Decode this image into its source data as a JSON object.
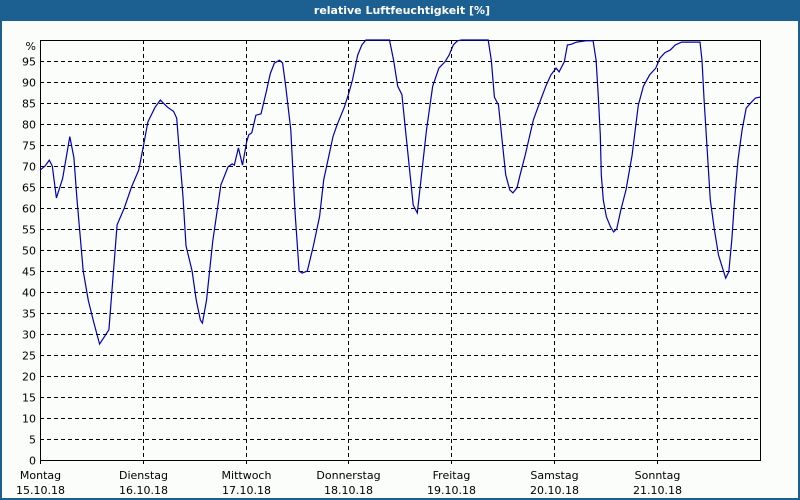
{
  "window": {
    "title": "relative Luftfeuchtigkeit [%]"
  },
  "colors": {
    "titlebar": "#1c5f91",
    "line": "#0000b4",
    "background": "#fbfdfb",
    "grid": "#000000"
  },
  "chart_data": {
    "type": "line",
    "title": "relative Luftfeuchtigkeit [%]",
    "xlabel": "",
    "ylabel": "%",
    "ylim": [
      0,
      100
    ],
    "grid": true,
    "y_ticks": [
      0,
      5,
      10,
      15,
      20,
      25,
      30,
      35,
      40,
      45,
      50,
      55,
      60,
      65,
      70,
      75,
      80,
      85,
      90,
      95
    ],
    "y_unit_label": "%",
    "x_ticks": [
      {
        "day": "Montag",
        "date": "15.10.18"
      },
      {
        "day": "Dienstag",
        "date": "16.10.18"
      },
      {
        "day": "Mittwoch",
        "date": "17.10.18"
      },
      {
        "day": "Donnerstag",
        "date": "18.10.18"
      },
      {
        "day": "Freitag",
        "date": "19.10.18"
      },
      {
        "day": "Samstag",
        "date": "20.10.18"
      },
      {
        "day": "Sonntag",
        "date": "21.10.18"
      }
    ],
    "x_unit": "days since 15.10.18 00:00",
    "series": [
      {
        "name": "relative Luftfeuchtigkeit",
        "points": [
          [
            0.0,
            69
          ],
          [
            0.05,
            70
          ],
          [
            0.09,
            71.4
          ],
          [
            0.12,
            70
          ],
          [
            0.16,
            62.4
          ],
          [
            0.22,
            67
          ],
          [
            0.29,
            77
          ],
          [
            0.33,
            72
          ],
          [
            0.36,
            62
          ],
          [
            0.42,
            45
          ],
          [
            0.47,
            38
          ],
          [
            0.52,
            33
          ],
          [
            0.58,
            27.6
          ],
          [
            0.67,
            31
          ],
          [
            0.75,
            56
          ],
          [
            0.82,
            60
          ],
          [
            0.89,
            65
          ],
          [
            0.96,
            69
          ],
          [
            1.0,
            74
          ],
          [
            1.05,
            80.5
          ],
          [
            1.12,
            84
          ],
          [
            1.17,
            85.7
          ],
          [
            1.24,
            84
          ],
          [
            1.3,
            83
          ],
          [
            1.33,
            81.4
          ],
          [
            1.37,
            69
          ],
          [
            1.39,
            63
          ],
          [
            1.42,
            51
          ],
          [
            1.48,
            45
          ],
          [
            1.52,
            38
          ],
          [
            1.56,
            33.3
          ],
          [
            1.58,
            32.6
          ],
          [
            1.62,
            38
          ],
          [
            1.68,
            52
          ],
          [
            1.76,
            65.5
          ],
          [
            1.83,
            69.8
          ],
          [
            1.87,
            70.5
          ],
          [
            1.89,
            70.2
          ],
          [
            1.93,
            74.3
          ],
          [
            1.97,
            70.2
          ],
          [
            2.01,
            75.7
          ],
          [
            2.03,
            77.4
          ],
          [
            2.06,
            77.9
          ],
          [
            2.1,
            82.1
          ],
          [
            2.15,
            82.4
          ],
          [
            2.2,
            87.6
          ],
          [
            2.24,
            92
          ],
          [
            2.28,
            94.5
          ],
          [
            2.33,
            95.2
          ],
          [
            2.36,
            94.5
          ],
          [
            2.39,
            89
          ],
          [
            2.44,
            78.6
          ],
          [
            2.48,
            59.5
          ],
          [
            2.52,
            45
          ],
          [
            2.55,
            44.5
          ],
          [
            2.6,
            45
          ],
          [
            2.66,
            51
          ],
          [
            2.72,
            58
          ],
          [
            2.76,
            66.7
          ],
          [
            2.85,
            77
          ],
          [
            2.89,
            79.8
          ],
          [
            2.96,
            84
          ],
          [
            3.0,
            87
          ],
          [
            3.04,
            90.5
          ],
          [
            3.09,
            96.4
          ],
          [
            3.13,
            98.8
          ],
          [
            3.17,
            100
          ],
          [
            3.4,
            100
          ],
          [
            3.44,
            95.2
          ],
          [
            3.48,
            89
          ],
          [
            3.52,
            87
          ],
          [
            3.56,
            77.4
          ],
          [
            3.6,
            67.9
          ],
          [
            3.63,
            60.7
          ],
          [
            3.67,
            58.8
          ],
          [
            3.7,
            65.5
          ],
          [
            3.76,
            78.6
          ],
          [
            3.82,
            89
          ],
          [
            3.88,
            93.3
          ],
          [
            3.94,
            94.8
          ],
          [
            3.98,
            96.4
          ],
          [
            4.02,
            98.8
          ],
          [
            4.06,
            99.8
          ],
          [
            4.1,
            100
          ],
          [
            4.36,
            100
          ],
          [
            4.39,
            95.2
          ],
          [
            4.42,
            86.4
          ],
          [
            4.46,
            84.5
          ],
          [
            4.5,
            75
          ],
          [
            4.53,
            67.9
          ],
          [
            4.57,
            64.3
          ],
          [
            4.6,
            63.6
          ],
          [
            4.64,
            64.8
          ],
          [
            4.67,
            67.9
          ],
          [
            4.72,
            72.6
          ],
          [
            4.8,
            81
          ],
          [
            4.87,
            85.7
          ],
          [
            4.92,
            89
          ],
          [
            4.97,
            91.7
          ],
          [
            5.02,
            93.3
          ],
          [
            5.05,
            92.4
          ],
          [
            5.1,
            94.8
          ],
          [
            5.13,
            98.8
          ],
          [
            5.17,
            99
          ],
          [
            5.22,
            99.5
          ],
          [
            5.31,
            99.8
          ],
          [
            5.38,
            99.8
          ],
          [
            5.41,
            95.2
          ],
          [
            5.43,
            87
          ],
          [
            5.45,
            77.4
          ],
          [
            5.46,
            67.9
          ],
          [
            5.48,
            61.9
          ],
          [
            5.51,
            57.9
          ],
          [
            5.55,
            55.5
          ],
          [
            5.58,
            54.3
          ],
          [
            5.61,
            55
          ],
          [
            5.65,
            59.5
          ],
          [
            5.7,
            64.3
          ],
          [
            5.76,
            72.6
          ],
          [
            5.82,
            84.5
          ],
          [
            5.87,
            89
          ],
          [
            5.93,
            91.7
          ],
          [
            5.99,
            93.3
          ],
          [
            6.03,
            95.7
          ],
          [
            6.08,
            97
          ],
          [
            6.13,
            97.6
          ],
          [
            6.18,
            98.8
          ],
          [
            6.24,
            99.5
          ],
          [
            6.42,
            99.5
          ],
          [
            6.44,
            95.2
          ],
          [
            6.46,
            85.7
          ],
          [
            6.49,
            73.8
          ],
          [
            6.52,
            61.9
          ],
          [
            6.56,
            54.8
          ],
          [
            6.6,
            48.8
          ],
          [
            6.63,
            46.4
          ],
          [
            6.67,
            43.3
          ],
          [
            6.7,
            44.8
          ],
          [
            6.73,
            52.4
          ],
          [
            6.76,
            63
          ],
          [
            6.79,
            71.4
          ],
          [
            6.83,
            78.6
          ],
          [
            6.87,
            83.8
          ],
          [
            6.92,
            85.2
          ],
          [
            6.96,
            86.2
          ],
          [
            7.02,
            86.4
          ]
        ]
      }
    ],
    "x_range_days": [
      0,
      7.0
    ]
  }
}
